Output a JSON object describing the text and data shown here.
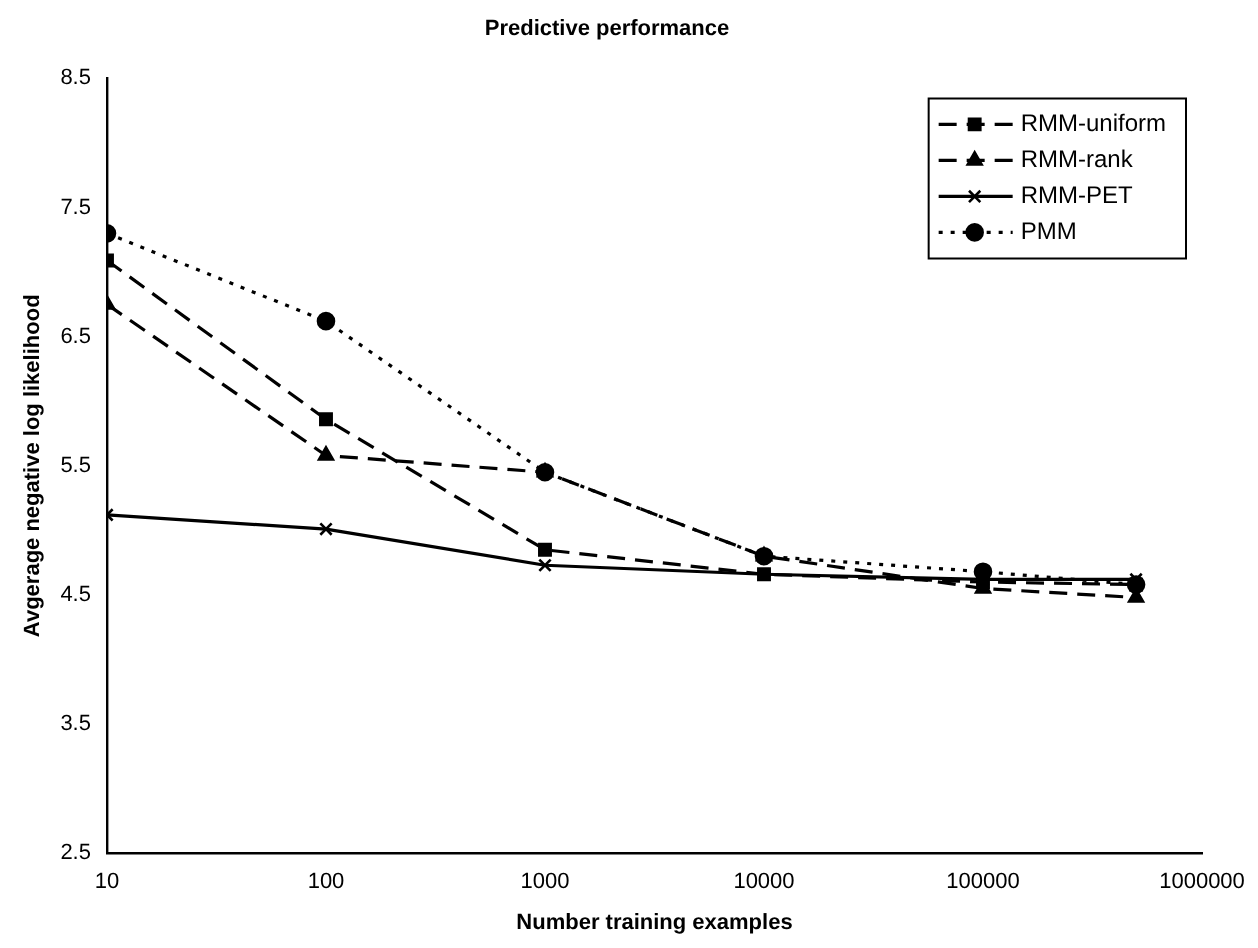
{
  "chart_data": {
    "type": "line",
    "title": "Predictive performance",
    "xlabel": "Number training examples",
    "ylabel": "Avgerage negative log likelihood",
    "x": [
      10,
      100,
      1000,
      10000,
      100000,
      500000
    ],
    "series": [
      {
        "name": "RMM-uniform",
        "color": "#000000",
        "marker": "square",
        "line_style": "dashed",
        "values": [
          7.09,
          5.86,
          4.85,
          4.66,
          4.6,
          4.58
        ]
      },
      {
        "name": "RMM-rank",
        "color": "#000000",
        "marker": "triangle",
        "line_style": "dashed",
        "values": [
          6.75,
          5.58,
          5.45,
          4.8,
          4.55,
          4.48
        ]
      },
      {
        "name": "RMM-PET",
        "color": "#000000",
        "marker": "cross",
        "line_style": "solid",
        "values": [
          5.12,
          5.01,
          4.73,
          4.66,
          4.62,
          4.62
        ]
      },
      {
        "name": "PMM",
        "color": "#000000",
        "marker": "circle",
        "line_style": "dotted",
        "values": [
          7.3,
          6.62,
          5.45,
          4.8,
          4.68,
          4.58
        ]
      }
    ],
    "log": "x",
    "xlim": [
      10,
      1000000
    ],
    "xticks": [
      10,
      100,
      1000,
      10000,
      100000,
      1000000
    ],
    "ylim": [
      2.5,
      8.5
    ],
    "yticks": [
      2.5,
      3.5,
      4.5,
      5.5,
      6.5,
      7.5,
      8.5
    ],
    "grid": false,
    "legend": "top right"
  }
}
